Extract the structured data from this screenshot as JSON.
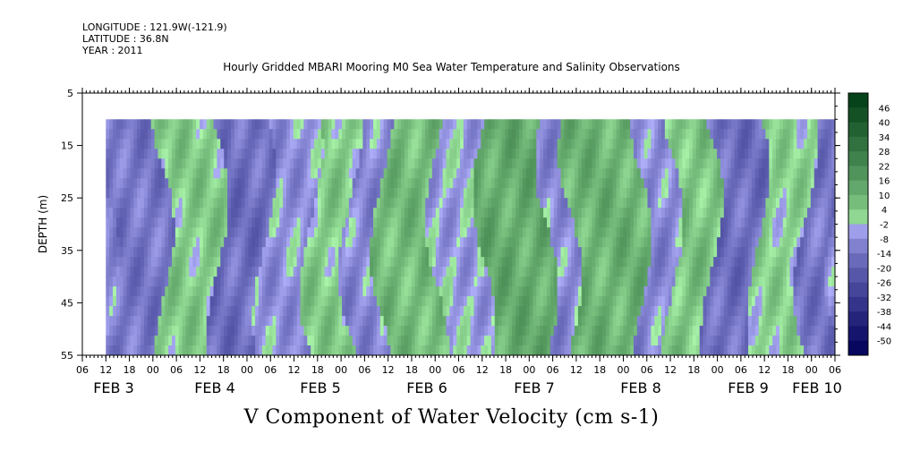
{
  "header": {
    "longitude": "LONGITUDE : 121.9W(-121.9)",
    "latitude": "LATITUDE : 36.8N",
    "year": "YEAR : 2011"
  },
  "chart_data": {
    "type": "heatmap",
    "title": "Hourly Gridded MBARI Mooring M0 Sea Water Temperature and Salinity Observations",
    "xlabel": "V Component of Water Velocity (cm s-1)",
    "ylabel": "DEPTH (m)",
    "x_axis": {
      "hour_ticks": [
        "06",
        "12",
        "18",
        "00",
        "06",
        "12",
        "18",
        "00",
        "06",
        "12",
        "18",
        "00",
        "06",
        "12",
        "18",
        "00",
        "06",
        "12",
        "18",
        "00",
        "06",
        "12",
        "18",
        "00",
        "06",
        "12",
        "18",
        "00",
        "06",
        "12",
        "18",
        "00",
        "06"
      ],
      "day_labels": [
        "FEB  3",
        "FEB  4",
        "FEB  5",
        "FEB  6",
        "FEB  7",
        "FEB  8",
        "FEB  9",
        "FEB 10"
      ],
      "range_hours": [
        0,
        192
      ],
      "data_start_hour": 6
    },
    "y_axis": {
      "ticks": [
        5,
        15,
        25,
        35,
        45,
        55
      ],
      "range": [
        55,
        5
      ],
      "data_top_depth": 10,
      "inverted": true
    },
    "colorbar": {
      "levels": [
        "46",
        "40",
        "34",
        "28",
        "22",
        "16",
        "10",
        "4",
        "-2",
        "-8",
        "-14",
        "-20",
        "-26",
        "-32",
        "-38",
        "-44",
        "-50"
      ],
      "range": [
        -50,
        52
      ]
    },
    "field_pattern": {
      "note_bands": [
        {
          "start_hour": 6,
          "end_hour": 20,
          "value": -10
        },
        {
          "start_hour": 20,
          "end_hour": 34,
          "value": 6
        },
        {
          "start_hour": 34,
          "end_hour": 46,
          "value": -12
        },
        {
          "start_hour": 46,
          "end_hour": 58,
          "value": -4
        },
        {
          "start_hour": 58,
          "end_hour": 68,
          "value": 6
        },
        {
          "start_hour": 68,
          "end_hour": 76,
          "value": -6
        },
        {
          "start_hour": 76,
          "end_hour": 90,
          "value": 10
        },
        {
          "start_hour": 90,
          "end_hour": 102,
          "value": -2
        },
        {
          "start_hour": 102,
          "end_hour": 118,
          "value": 14
        },
        {
          "start_hour": 118,
          "end_hour": 124,
          "value": -6
        },
        {
          "start_hour": 124,
          "end_hour": 142,
          "value": 12
        },
        {
          "start_hour": 142,
          "end_hour": 150,
          "value": -6
        },
        {
          "start_hour": 150,
          "end_hour": 160,
          "value": 8
        },
        {
          "start_hour": 160,
          "end_hour": 172,
          "value": -12
        },
        {
          "start_hour": 172,
          "end_hour": 184,
          "value": 4
        },
        {
          "start_hour": 184,
          "end_hour": 192,
          "value": -10
        }
      ]
    }
  }
}
